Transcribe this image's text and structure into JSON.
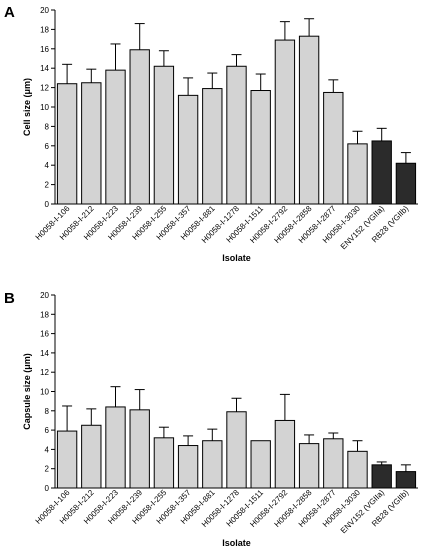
{
  "chart_data": [
    {
      "type": "bar",
      "panel_label": "A",
      "ylabel": "Cell size (μm)",
      "xlabel": "Isolate",
      "ylim": [
        0,
        20
      ],
      "yticks": [
        0,
        2,
        4,
        6,
        8,
        10,
        12,
        14,
        16,
        18,
        20
      ],
      "grid": false,
      "categories": [
        "H0058-I-106",
        "H0058-I-212",
        "H0058-I-223",
        "H0058-I-239",
        "H0058-I-255",
        "H0058-I-357",
        "H0058-I-881",
        "H0058-I-1278",
        "H0058-I-1511",
        "H0058-I-2792",
        "H0058-I-2858",
        "H0058-I-2877",
        "H0058-I-3030",
        "ENV152 (VGIIa)",
        "RB28 (VGIIb)"
      ],
      "values": [
        12.4,
        12.5,
        13.8,
        15.9,
        14.2,
        11.2,
        11.9,
        14.2,
        11.7,
        16.9,
        17.3,
        11.5,
        6.2,
        6.5,
        4.2
      ],
      "errors": [
        2.0,
        1.4,
        2.7,
        2.7,
        1.6,
        1.8,
        1.6,
        1.2,
        1.7,
        1.9,
        1.8,
        1.3,
        1.3,
        1.3,
        1.1
      ],
      "colors": [
        "#d3d3d3",
        "#d3d3d3",
        "#d3d3d3",
        "#d3d3d3",
        "#d3d3d3",
        "#d3d3d3",
        "#d3d3d3",
        "#d3d3d3",
        "#d3d3d3",
        "#d3d3d3",
        "#d3d3d3",
        "#d3d3d3",
        "#d3d3d3",
        "#2b2b2b",
        "#2b2b2b"
      ]
    },
    {
      "type": "bar",
      "panel_label": "B",
      "ylabel": "Capsule size (μm)",
      "xlabel": "Isolate",
      "ylim": [
        0,
        20
      ],
      "yticks": [
        0,
        2,
        4,
        6,
        8,
        10,
        12,
        14,
        16,
        18,
        20
      ],
      "grid": false,
      "categories": [
        "H0058-I-106",
        "H0058-I-212",
        "H0058-I-223",
        "H0058-I-239",
        "H0058-I-255",
        "H0058-I-357",
        "H0058-I-881",
        "H0058-I-1278",
        "H0058-I-1511",
        "H0058-I-2792",
        "H0058-I-2858",
        "H0058-I-2877",
        "H0058-I-3030",
        "ENV152 (VGIIa)",
        "RB28 (VGIIb)"
      ],
      "values": [
        5.9,
        6.5,
        8.4,
        8.1,
        5.2,
        4.4,
        4.9,
        7.9,
        4.9,
        7.0,
        4.6,
        5.1,
        3.8,
        2.4,
        1.7
      ],
      "errors": [
        2.6,
        1.7,
        2.1,
        2.1,
        1.1,
        1.0,
        1.2,
        1.4,
        0.0,
        2.7,
        0.9,
        0.6,
        1.1,
        0.3,
        0.7
      ],
      "colors": [
        "#d3d3d3",
        "#d3d3d3",
        "#d3d3d3",
        "#d3d3d3",
        "#d3d3d3",
        "#d3d3d3",
        "#d3d3d3",
        "#d3d3d3",
        "#d3d3d3",
        "#d3d3d3",
        "#d3d3d3",
        "#d3d3d3",
        "#d3d3d3",
        "#2b2b2b",
        "#2b2b2b"
      ]
    }
  ]
}
